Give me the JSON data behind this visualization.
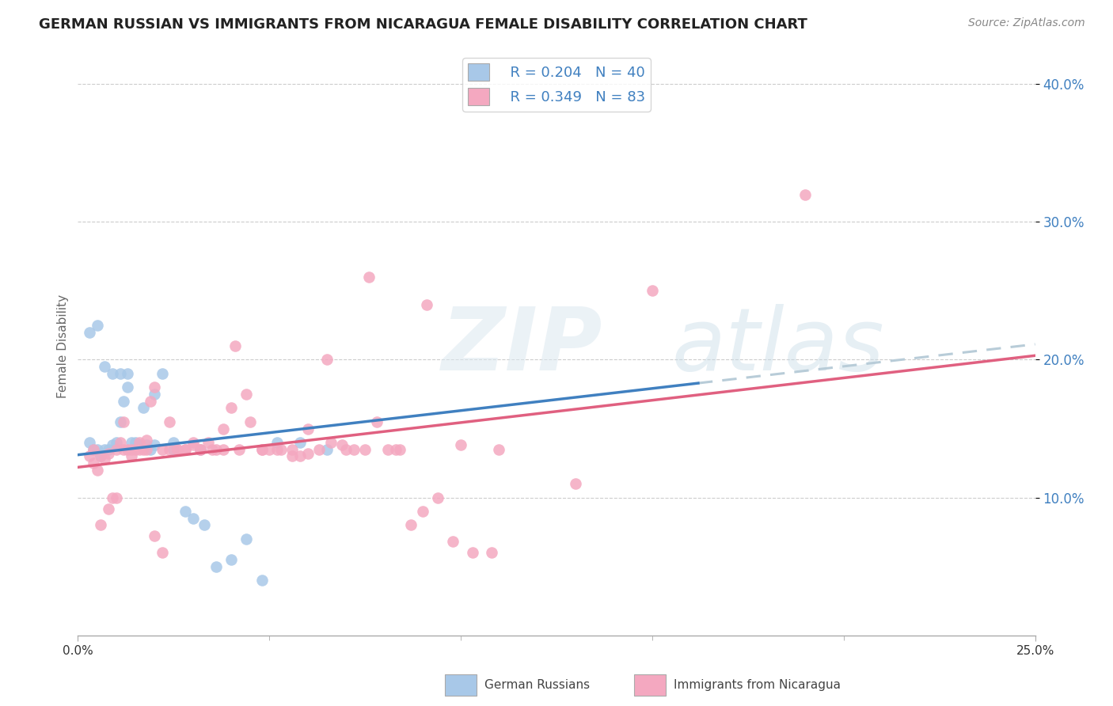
{
  "title": "GERMAN RUSSIAN VS IMMIGRANTS FROM NICARAGUA FEMALE DISABILITY CORRELATION CHART",
  "source": "Source: ZipAtlas.com",
  "ylabel": "Female Disability",
  "watermark_zip": "ZIP",
  "watermark_atlas": "atlas",
  "legend1_R": "R = 0.204",
  "legend1_N": "N = 40",
  "legend2_R": "R = 0.349",
  "legend2_N": "N = 83",
  "color_blue_dot": "#a8c8e8",
  "color_pink_dot": "#f4a8c0",
  "color_blue_text": "#4080c0",
  "color_line_blue": "#4080c0",
  "color_line_pink": "#e06080",
  "color_line_dashed": "#b8ccd8",
  "xlim": [
    0.0,
    0.25
  ],
  "ylim": [
    0.0,
    0.42
  ],
  "yticks": [
    0.1,
    0.2,
    0.3,
    0.4
  ],
  "gr_x": [
    0.003,
    0.004,
    0.005,
    0.006,
    0.007,
    0.008,
    0.009,
    0.01,
    0.011,
    0.012,
    0.013,
    0.014,
    0.015,
    0.016,
    0.017,
    0.018,
    0.019,
    0.02,
    0.022,
    0.025,
    0.028,
    0.03,
    0.033,
    0.036,
    0.04,
    0.044,
    0.048,
    0.052,
    0.058,
    0.065,
    0.003,
    0.005,
    0.007,
    0.009,
    0.011,
    0.013,
    0.016,
    0.02,
    0.025,
    0.032
  ],
  "gr_y": [
    0.14,
    0.135,
    0.135,
    0.13,
    0.135,
    0.135,
    0.138,
    0.14,
    0.155,
    0.17,
    0.18,
    0.14,
    0.14,
    0.138,
    0.165,
    0.138,
    0.135,
    0.175,
    0.19,
    0.14,
    0.09,
    0.085,
    0.08,
    0.05,
    0.055,
    0.07,
    0.04,
    0.14,
    0.14,
    0.135,
    0.22,
    0.225,
    0.195,
    0.19,
    0.19,
    0.19,
    0.138,
    0.138,
    0.135,
    0.135
  ],
  "nic_x": [
    0.003,
    0.004,
    0.005,
    0.006,
    0.007,
    0.008,
    0.009,
    0.01,
    0.011,
    0.012,
    0.013,
    0.014,
    0.015,
    0.016,
    0.017,
    0.018,
    0.019,
    0.02,
    0.022,
    0.024,
    0.026,
    0.028,
    0.03,
    0.032,
    0.034,
    0.036,
    0.038,
    0.04,
    0.042,
    0.045,
    0.048,
    0.05,
    0.053,
    0.056,
    0.058,
    0.06,
    0.063,
    0.066,
    0.069,
    0.072,
    0.075,
    0.078,
    0.081,
    0.084,
    0.087,
    0.09,
    0.094,
    0.098,
    0.103,
    0.108,
    0.004,
    0.006,
    0.008,
    0.01,
    0.012,
    0.014,
    0.016,
    0.018,
    0.02,
    0.022,
    0.024,
    0.026,
    0.028,
    0.03,
    0.032,
    0.035,
    0.038,
    0.041,
    0.044,
    0.048,
    0.052,
    0.056,
    0.06,
    0.065,
    0.07,
    0.076,
    0.083,
    0.091,
    0.1,
    0.11,
    0.13,
    0.15,
    0.19
  ],
  "nic_y": [
    0.13,
    0.125,
    0.12,
    0.13,
    0.128,
    0.132,
    0.1,
    0.135,
    0.14,
    0.155,
    0.135,
    0.13,
    0.135,
    0.14,
    0.135,
    0.142,
    0.17,
    0.18,
    0.135,
    0.155,
    0.135,
    0.135,
    0.138,
    0.135,
    0.14,
    0.135,
    0.15,
    0.165,
    0.135,
    0.155,
    0.135,
    0.135,
    0.135,
    0.13,
    0.13,
    0.132,
    0.135,
    0.14,
    0.138,
    0.135,
    0.135,
    0.155,
    0.135,
    0.135,
    0.08,
    0.09,
    0.1,
    0.068,
    0.06,
    0.06,
    0.135,
    0.08,
    0.092,
    0.1,
    0.135,
    0.135,
    0.135,
    0.135,
    0.072,
    0.06,
    0.135,
    0.135,
    0.135,
    0.14,
    0.135,
    0.135,
    0.135,
    0.21,
    0.175,
    0.135,
    0.135,
    0.135,
    0.15,
    0.2,
    0.135,
    0.26,
    0.135,
    0.24,
    0.138,
    0.135,
    0.11,
    0.25,
    0.32
  ]
}
